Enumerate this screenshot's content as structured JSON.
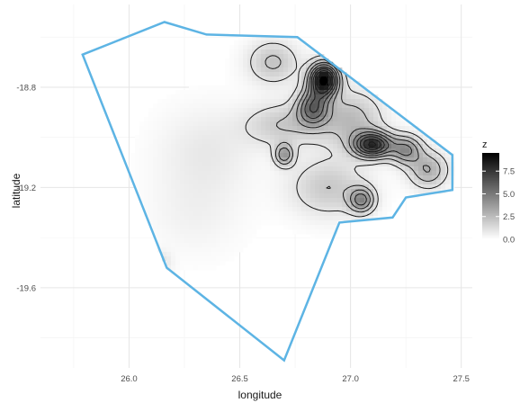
{
  "chart_data": {
    "type": "heatmap",
    "title": "",
    "xlabel": "longitude",
    "ylabel": "latitude",
    "xlim": [
      25.6,
      27.55
    ],
    "ylim": [
      -19.92,
      -18.47
    ],
    "x_ticks": [
      {
        "value": 26.0,
        "label": "26.0"
      },
      {
        "value": 26.5,
        "label": "26.5"
      },
      {
        "value": 27.0,
        "label": "27.0"
      },
      {
        "value": 27.5,
        "label": "27.5"
      }
    ],
    "y_ticks": [
      {
        "value": -18.8,
        "label": "-18.8"
      },
      {
        "value": -19.2,
        "label": "-19.2"
      },
      {
        "value": -19.6,
        "label": "-19.6"
      }
    ],
    "grid": true,
    "boundary": {
      "color": "#5db4e4",
      "points": [
        [
          25.79,
          -18.67
        ],
        [
          26.16,
          -18.54
        ],
        [
          26.35,
          -18.59
        ],
        [
          26.76,
          -18.6
        ],
        [
          27.46,
          -19.07
        ],
        [
          27.46,
          -19.21
        ],
        [
          27.25,
          -19.24
        ],
        [
          27.19,
          -19.32
        ],
        [
          26.95,
          -19.34
        ],
        [
          26.7,
          -19.89
        ],
        [
          26.17,
          -19.52
        ],
        [
          25.79,
          -18.67
        ]
      ]
    },
    "density": {
      "colorscale": [
        "#ffffff",
        "#000000"
      ],
      "zlim": [
        0,
        9.5
      ],
      "peaks": [
        {
          "x": 26.88,
          "y": -18.77,
          "z": 9.5,
          "sx": 0.045,
          "sy": 0.045
        },
        {
          "x": 26.83,
          "y": -18.88,
          "z": 5.0,
          "sx": 0.05,
          "sy": 0.05
        },
        {
          "x": 27.1,
          "y": -19.03,
          "z": 7.5,
          "sx": 0.06,
          "sy": 0.035
        },
        {
          "x": 27.25,
          "y": -19.05,
          "z": 4.0,
          "sx": 0.05,
          "sy": 0.04
        },
        {
          "x": 26.7,
          "y": -19.07,
          "z": 3.5,
          "sx": 0.03,
          "sy": 0.03
        },
        {
          "x": 27.05,
          "y": -19.25,
          "z": 4.0,
          "sx": 0.04,
          "sy": 0.035
        },
        {
          "x": 27.35,
          "y": -19.13,
          "z": 3.0,
          "sx": 0.06,
          "sy": 0.05
        },
        {
          "x": 26.65,
          "y": -18.7,
          "z": 2.2,
          "sx": 0.08,
          "sy": 0.06
        },
        {
          "x": 26.7,
          "y": -18.95,
          "z": 2.0,
          "sx": 0.12,
          "sy": 0.06
        },
        {
          "x": 27.0,
          "y": -18.93,
          "z": 2.5,
          "sx": 0.1,
          "sy": 0.08
        },
        {
          "x": 26.9,
          "y": -19.2,
          "z": 2.0,
          "sx": 0.12,
          "sy": 0.08
        },
        {
          "x": 26.35,
          "y": -19.05,
          "z": 0.8,
          "sx": 0.15,
          "sy": 0.12
        },
        {
          "x": 26.3,
          "y": -19.3,
          "z": 0.5,
          "sx": 0.15,
          "sy": 0.12
        },
        {
          "x": 26.15,
          "y": -19.5,
          "z": 1.0,
          "sx": 0.03,
          "sy": 0.03
        }
      ],
      "contour_levels": [
        1,
        2,
        3,
        4,
        5,
        6,
        7,
        8,
        9
      ]
    },
    "legend": {
      "title": "z",
      "position": "right",
      "ticks": [
        {
          "value": 7.5,
          "label": "7.5"
        },
        {
          "value": 5.0,
          "label": "5.0"
        },
        {
          "value": 2.5,
          "label": "2.5"
        },
        {
          "value": 0.0,
          "label": "0.0"
        }
      ]
    }
  }
}
